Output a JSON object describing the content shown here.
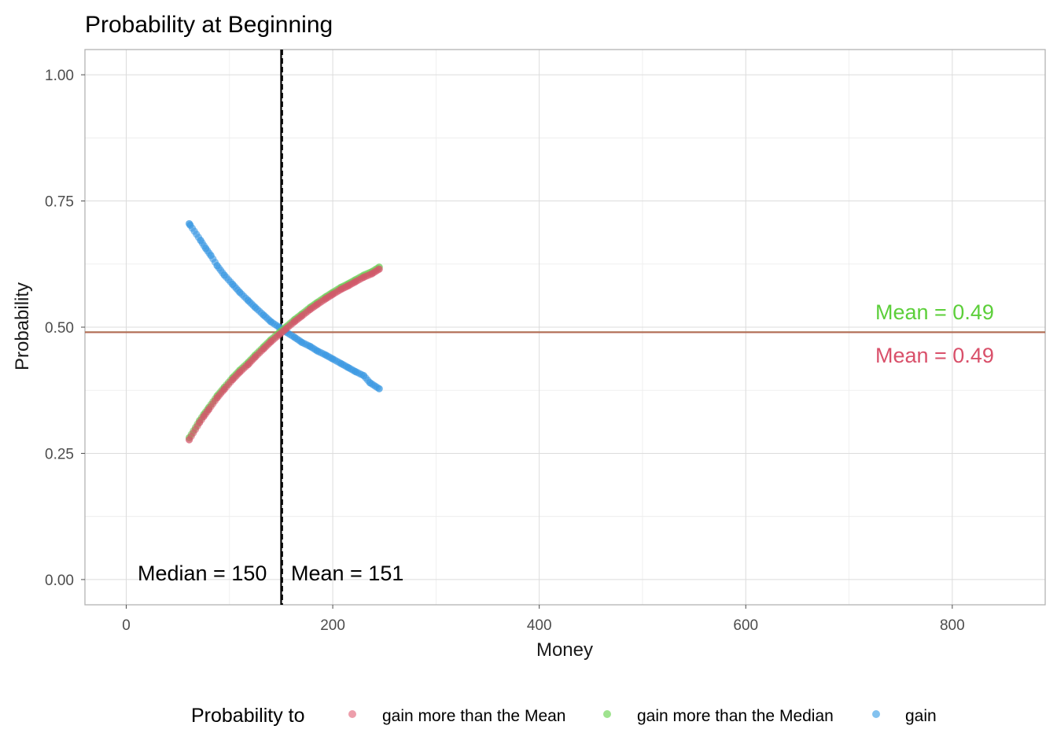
{
  "chart_data": {
    "type": "scatter",
    "title": "Probability at Beginning",
    "xlabel": "Money",
    "ylabel": "Probability",
    "xlim": [
      -40,
      890
    ],
    "ylim": [
      -0.05,
      1.05
    ],
    "x_ticks": [
      0,
      200,
      400,
      600,
      800
    ],
    "x_tick_labels": [
      "0",
      "200",
      "400",
      "600",
      "800"
    ],
    "y_ticks": [
      0,
      0.25,
      0.5,
      0.75,
      1
    ],
    "y_tick_labels": [
      "0.00",
      "0.25",
      "0.50",
      "0.75",
      "1.00"
    ],
    "grid": true,
    "legend": {
      "title": "Probability to",
      "position": "bottom",
      "entries": [
        {
          "label": "gain more than the Mean",
          "color": "#e36a7e"
        },
        {
          "label": "gain more than the Median",
          "color": "#7fd96a"
        },
        {
          "label": "gain",
          "color": "#5aaeea"
        }
      ]
    },
    "series": [
      {
        "name": "gain more than the Mean",
        "color": "#d4566b",
        "x": [
          61,
          71,
          75,
          80,
          88,
          95,
          103,
          110,
          118,
          125,
          133,
          140,
          148,
          155,
          163,
          170,
          178,
          185,
          193,
          200,
          208,
          215,
          222,
          230,
          238,
          245
        ],
        "y": [
          0.277,
          0.311,
          0.323,
          0.337,
          0.36,
          0.377,
          0.396,
          0.411,
          0.426,
          0.441,
          0.457,
          0.471,
          0.485,
          0.497,
          0.511,
          0.522,
          0.535,
          0.545,
          0.556,
          0.565,
          0.575,
          0.582,
          0.59,
          0.599,
          0.606,
          0.615
        ]
      },
      {
        "name": "gain more than the Median",
        "color": "#6ccf57",
        "x": [
          61,
          71,
          75,
          80,
          88,
          95,
          103,
          110,
          118,
          125,
          133,
          140,
          148,
          155,
          163,
          170,
          178,
          185,
          193,
          200,
          208,
          215,
          222,
          230,
          238,
          245
        ],
        "y": [
          0.281,
          0.315,
          0.327,
          0.341,
          0.364,
          0.381,
          0.4,
          0.415,
          0.43,
          0.445,
          0.461,
          0.475,
          0.489,
          0.501,
          0.515,
          0.526,
          0.539,
          0.549,
          0.56,
          0.569,
          0.579,
          0.586,
          0.594,
          0.603,
          0.61,
          0.619
        ]
      },
      {
        "name": "gain",
        "color": "#3a98e2",
        "x": [
          61,
          62,
          72,
          77,
          82,
          88,
          95,
          103,
          110,
          118,
          125,
          133,
          140,
          148,
          155,
          163,
          170,
          178,
          185,
          193,
          200,
          208,
          215,
          222,
          230,
          236,
          245
        ],
        "y": [
          0.705,
          0.702,
          0.672,
          0.656,
          0.642,
          0.622,
          0.603,
          0.585,
          0.569,
          0.553,
          0.539,
          0.524,
          0.511,
          0.5,
          0.49,
          0.48,
          0.47,
          0.462,
          0.453,
          0.445,
          0.437,
          0.428,
          0.42,
          0.412,
          0.404,
          0.39,
          0.378
        ]
      }
    ],
    "reference_lines": [
      {
        "orientation": "vertical",
        "value": 150,
        "style": "solid",
        "color": "#000000"
      },
      {
        "orientation": "vertical",
        "value": 151,
        "style": "dashed",
        "color": "#000000"
      },
      {
        "orientation": "horizontal",
        "value": 0.49,
        "style": "solid",
        "color": "#7fd96a"
      },
      {
        "orientation": "horizontal",
        "value": 0.49,
        "style": "solid",
        "color": "#b36a55"
      }
    ],
    "annotations": [
      {
        "text": "Median = 150",
        "color": "#000000"
      },
      {
        "text": "Mean = 151",
        "color": "#000000"
      },
      {
        "text": "Mean = 0.49",
        "color": "#5ccf3a"
      },
      {
        "text": "Mean = 0.49",
        "color": "#d9506a"
      }
    ]
  }
}
